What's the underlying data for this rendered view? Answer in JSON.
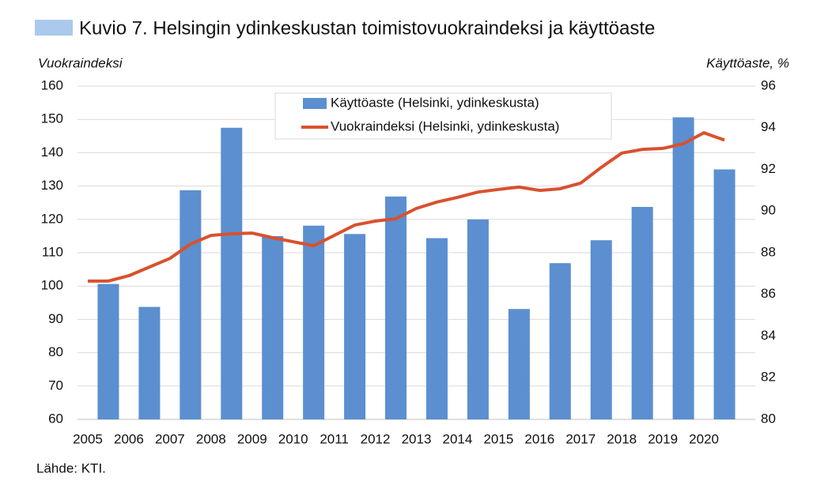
{
  "chart_data": {
    "type": "bar_line",
    "title": "Kuvio 7. Helsingin ydinkeskustan toimistovuokraindeksi ja käyttöaste",
    "ylabel": "Vuokraindeksi",
    "y2label": "Käyttöaste, %",
    "source": "Lähde: KTI.",
    "xlim": [
      2004.75,
      2021.25
    ],
    "xticks": [
      2005,
      2006,
      2007,
      2008,
      2009,
      2010,
      2011,
      2012,
      2013,
      2014,
      2015,
      2016,
      2017,
      2018,
      2019,
      2020
    ],
    "ylim": [
      60,
      160
    ],
    "yticks": [
      60,
      70,
      80,
      90,
      100,
      110,
      120,
      130,
      140,
      150,
      160
    ],
    "y2lim": [
      80,
      96
    ],
    "y2ticks": [
      80,
      82,
      84,
      86,
      88,
      90,
      92,
      94,
      96
    ],
    "grid": true,
    "series": [
      {
        "name": "Käyttöaste (Helsinki, ydinkeskusta)",
        "type": "bar",
        "axis": "y2",
        "color": "#5b8fd0",
        "x": [
          2005,
          2006,
          2007,
          2008,
          2009,
          2010,
          2011,
          2012,
          2013,
          2014,
          2015,
          2016,
          2017,
          2018,
          2019,
          2020
        ],
        "values": [
          86.5,
          85.4,
          91.0,
          94.0,
          88.8,
          89.3,
          88.9,
          90.7,
          88.7,
          89.6,
          85.3,
          87.5,
          88.6,
          90.2,
          94.5,
          92.0
        ]
      },
      {
        "name": "Vuokraindeksi (Helsinki, ydinkeskusta)",
        "type": "line",
        "color": "#d9512e",
        "x": [
          2005,
          2005.5,
          2006,
          2006.5,
          2007,
          2007.5,
          2008,
          2008.5,
          2009,
          2009.5,
          2010,
          2010.5,
          2011,
          2011.5,
          2012,
          2012.5,
          2013,
          2013.5,
          2014,
          2014.5,
          2015,
          2015.5,
          2016,
          2016.5,
          2017,
          2017.5,
          2018,
          2018.5,
          2019,
          2019.5,
          2020,
          2020.5
        ],
        "values": [
          101.5,
          101.5,
          103.1,
          105.7,
          108.3,
          112.6,
          115.2,
          115.7,
          115.9,
          114.5,
          113.3,
          112.1,
          115.2,
          118.3,
          119.5,
          120.2,
          123.3,
          125.2,
          126.6,
          128.2,
          129.0,
          129.7,
          128.7,
          129.2,
          130.9,
          135.6,
          139.9,
          141.0,
          141.3,
          142.7,
          146.0,
          143.8
        ]
      }
    ]
  }
}
